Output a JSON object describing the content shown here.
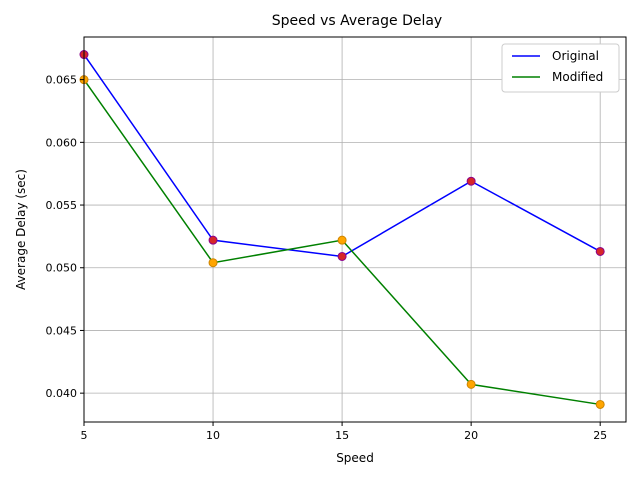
{
  "chart_data": {
    "type": "line",
    "title": "Speed vs Average Delay",
    "xlabel": "Speed",
    "ylabel": "Average Delay (sec)",
    "x": [
      5,
      10,
      15,
      20,
      25
    ],
    "xlim": [
      5,
      26
    ],
    "ylim": [
      0.0377,
      0.0684
    ],
    "xticks": [
      5,
      10,
      15,
      20,
      25
    ],
    "yticks": [
      0.04,
      0.045,
      0.05,
      0.055,
      0.06,
      0.065
    ],
    "ytick_labels": [
      "0.040",
      "0.045",
      "0.050",
      "0.055",
      "0.060",
      "0.065"
    ],
    "grid": true,
    "legend_position": "top-right",
    "series": [
      {
        "name": "Original",
        "values": [
          0.067,
          0.0522,
          0.0509,
          0.0569,
          0.0513
        ],
        "line_color": "#0000ff",
        "marker_color": "#d62728",
        "marker_edge": "#8b008b"
      },
      {
        "name": "Modified",
        "values": [
          0.065,
          0.0504,
          0.0522,
          0.0407,
          0.0391
        ],
        "line_color": "#008000",
        "marker_color": "#ffa500",
        "marker_edge": "#cc8400"
      }
    ]
  }
}
